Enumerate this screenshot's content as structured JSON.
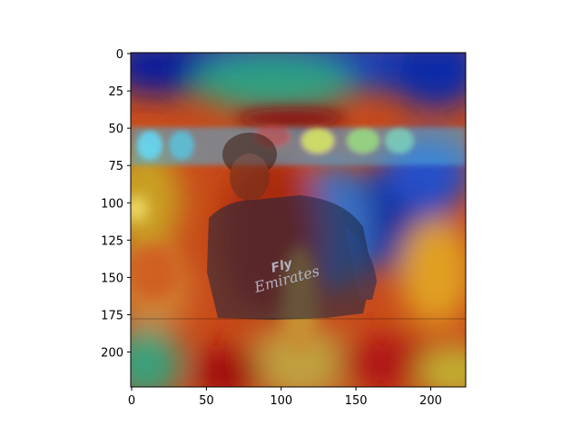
{
  "chart_data": {
    "type": "heatmap",
    "description": "224x224 image with jet-colormap activation heatmap overlay (Grad-CAM style) of a football player wearing a jersey printed 'Fly Emirates'.",
    "image_size": [
      224,
      224
    ],
    "xlim": [
      0,
      224
    ],
    "ylim": [
      224,
      0
    ],
    "x_ticks": [
      0,
      50,
      100,
      150,
      200
    ],
    "y_ticks": [
      0,
      25,
      50,
      75,
      100,
      125,
      150,
      175,
      200
    ],
    "x_tick_labels": [
      "0",
      "50",
      "100",
      "150",
      "200"
    ],
    "y_tick_labels": [
      "0",
      "25",
      "50",
      "75",
      "100",
      "125",
      "150",
      "175",
      "200"
    ],
    "title": "",
    "xlabel": "",
    "ylabel": "",
    "colormap": "jet",
    "grid": false,
    "jersey_text": [
      "Fly",
      "Emirates"
    ]
  }
}
